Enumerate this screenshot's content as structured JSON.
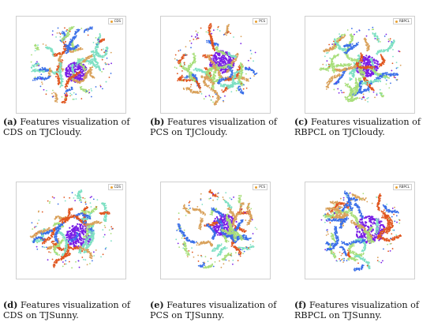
{
  "panels": [
    {
      "id": "a",
      "legend": "CDS",
      "caption_label": "(a)",
      "caption_text": "Features visualization of CDS on TJCloudy."
    },
    {
      "id": "b",
      "legend": "PCS",
      "caption_label": "(b)",
      "caption_text": "Features visualization of PCS on TJCloudy."
    },
    {
      "id": "c",
      "legend": "RBPCL",
      "caption_label": "(c)",
      "caption_text": "Features visualization of RBPCL on TJCloudy."
    },
    {
      "id": "d",
      "legend": "CDS",
      "caption_label": "(d)",
      "caption_text": "Features visualization of CDS on TJSunny."
    },
    {
      "id": "e",
      "legend": "PCS",
      "caption_label": "(e)",
      "caption_text": "Features visualization of PCS on TJSunny."
    },
    {
      "id": "f",
      "legend": "RBPCL",
      "caption_label": "(f)",
      "caption_text": "Features visualization of RBPCL on TJSunny."
    }
  ],
  "colors": {
    "purple": "#7a1fe6",
    "orange": "#e0561f",
    "green": "#a8de7a",
    "teal": "#7ee0c3",
    "blue": "#3a6fe8",
    "tan": "#d9a15a",
    "legend_swatch": "#e8a030"
  }
}
